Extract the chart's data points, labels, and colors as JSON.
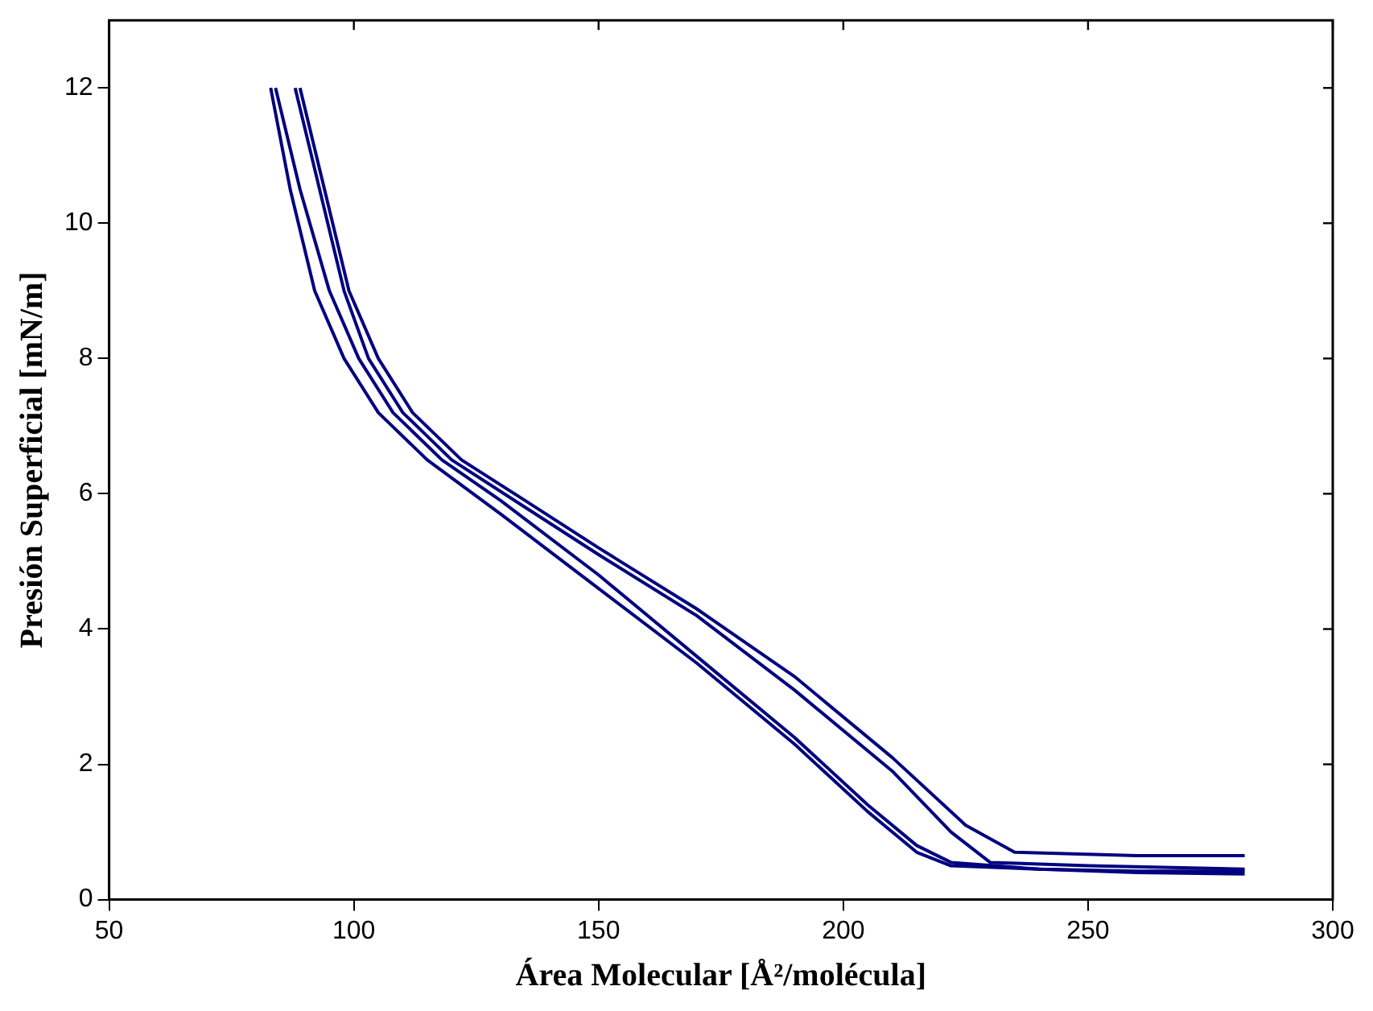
{
  "chart_data": {
    "type": "line",
    "xlabel": "Área Molecular [Å²/molécula]",
    "ylabel": "Presión Superficial [mN/m]",
    "xlim": [
      50,
      300
    ],
    "xticks": [
      50,
      100,
      150,
      200,
      250,
      300
    ],
    "ylim": [
      0,
      13
    ],
    "yticks": [
      0,
      2,
      4,
      6,
      8,
      10,
      12
    ],
    "grid": false,
    "legend": false,
    "marker": "none",
    "line_style": "solid",
    "series": [
      {
        "color": "#000080",
        "x": [
          83,
          87,
          92,
          98,
          105,
          115,
          130,
          150,
          170,
          190,
          205,
          215,
          222,
          240,
          260,
          282
        ],
        "values": [
          12,
          10.5,
          9,
          8,
          7.2,
          6.5,
          5.7,
          4.6,
          3.5,
          2.3,
          1.3,
          0.7,
          0.5,
          0.45,
          0.4,
          0.38
        ]
      },
      {
        "color": "#000080",
        "x": [
          84,
          89,
          95,
          101,
          108,
          118,
          130,
          150,
          170,
          190,
          205,
          215,
          222,
          240,
          260,
          282
        ],
        "values": [
          12,
          10.5,
          9,
          8,
          7.2,
          6.5,
          5.9,
          4.8,
          3.6,
          2.4,
          1.4,
          0.8,
          0.55,
          0.45,
          0.42,
          0.42
        ]
      },
      {
        "color": "#000080",
        "x": [
          88,
          93,
          98,
          103,
          110,
          120,
          135,
          150,
          170,
          190,
          210,
          222,
          230,
          250,
          282
        ],
        "values": [
          12,
          10.5,
          9,
          8,
          7.2,
          6.5,
          5.8,
          5.1,
          4.2,
          3.1,
          1.9,
          1,
          0.55,
          0.5,
          0.45
        ]
      },
      {
        "color": "#000080",
        "x": [
          89,
          94,
          99,
          105,
          112,
          122,
          135,
          150,
          170,
          190,
          210,
          225,
          235,
          260,
          282
        ],
        "values": [
          12,
          10.5,
          9,
          8,
          7.2,
          6.5,
          5.9,
          5.2,
          4.3,
          3.3,
          2.1,
          1.1,
          0.7,
          0.65,
          0.65
        ]
      }
    ]
  }
}
